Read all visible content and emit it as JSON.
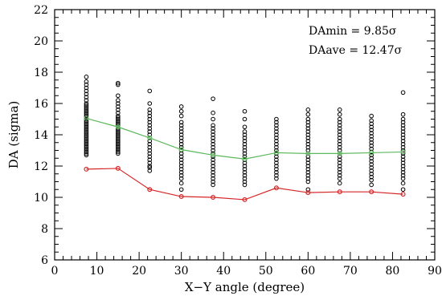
{
  "chart_data": {
    "type": "scatter",
    "title": "",
    "xlabel": "X−Y angle (degree)",
    "ylabel": "DA (sigma)",
    "xlim": [
      0,
      90
    ],
    "ylim": [
      6,
      22
    ],
    "xticks": [
      0,
      10,
      20,
      30,
      40,
      50,
      60,
      70,
      80,
      90
    ],
    "yticks": [
      6,
      8,
      10,
      12,
      14,
      16,
      18,
      20,
      22
    ],
    "grid": false,
    "annotations": [
      {
        "label": "DAmin = ",
        "value": "9.85σ"
      },
      {
        "label": "DAave = ",
        "value": "12.47σ"
      }
    ],
    "colors": {
      "ave_line": "#5cb85c",
      "min_line": "#d62728",
      "scatter": "#000000"
    },
    "scatter": [
      {
        "x": 7.5,
        "y": [
          12.7,
          12.8,
          12.9,
          13.0,
          13.1,
          13.2,
          13.3,
          13.4,
          13.5,
          13.6,
          13.7,
          13.8,
          13.9,
          14.0,
          14.1,
          14.2,
          14.3,
          14.4,
          14.5,
          14.6,
          14.7,
          14.8,
          14.9,
          15.0,
          15.1,
          15.2,
          15.3,
          15.4,
          15.5,
          15.6,
          15.7,
          15.8,
          15.9,
          16.0,
          16.2,
          16.4,
          16.6,
          16.8,
          17.0,
          17.2,
          17.4,
          17.7
        ]
      },
      {
        "x": 15,
        "y": [
          12.8,
          12.9,
          13.0,
          13.1,
          13.2,
          13.3,
          13.4,
          13.5,
          13.6,
          13.7,
          13.8,
          13.9,
          14.0,
          14.1,
          14.2,
          14.3,
          14.4,
          14.5,
          14.6,
          14.7,
          14.8,
          14.9,
          15.0,
          15.1,
          15.2,
          15.4,
          15.6,
          15.8,
          16.0,
          16.2,
          16.5,
          17.2,
          17.3
        ]
      },
      {
        "x": 22.5,
        "y": [
          11.7,
          11.9,
          12.0,
          12.2,
          12.4,
          12.6,
          12.8,
          13.0,
          13.2,
          13.4,
          13.6,
          13.8,
          14.0,
          14.2,
          14.4,
          14.6,
          14.8,
          15.0,
          15.2,
          15.4,
          15.6,
          16.0,
          16.8
        ]
      },
      {
        "x": 30,
        "y": [
          10.5,
          10.9,
          11.2,
          11.4,
          11.6,
          11.8,
          12.0,
          12.2,
          12.4,
          12.6,
          12.8,
          13.0,
          13.2,
          13.4,
          13.6,
          13.8,
          14.0,
          14.2,
          14.4,
          14.6,
          14.8,
          15.2,
          15.5,
          15.8
        ]
      },
      {
        "x": 37.5,
        "y": [
          10.8,
          11.0,
          11.2,
          11.4,
          11.6,
          11.8,
          12.0,
          12.2,
          12.4,
          12.6,
          12.8,
          13.0,
          13.2,
          13.4,
          13.6,
          13.8,
          14.0,
          14.2,
          14.4,
          14.6,
          15.0,
          15.4,
          16.3
        ]
      },
      {
        "x": 45,
        "y": [
          10.8,
          11.0,
          11.2,
          11.4,
          11.6,
          11.8,
          12.0,
          12.2,
          12.4,
          12.6,
          12.8,
          13.0,
          13.2,
          13.4,
          13.6,
          13.8,
          14.0,
          14.2,
          14.5,
          15.0,
          15.5
        ]
      },
      {
        "x": 52.5,
        "y": [
          11.2,
          11.4,
          11.6,
          11.8,
          12.0,
          12.2,
          12.4,
          12.6,
          12.8,
          13.0,
          13.2,
          13.4,
          13.6,
          13.8,
          14.0,
          14.2,
          14.4,
          14.6,
          14.8,
          15.0
        ]
      },
      {
        "x": 60,
        "y": [
          10.5,
          11.0,
          11.2,
          11.4,
          11.6,
          11.8,
          12.0,
          12.2,
          12.4,
          12.6,
          12.8,
          13.0,
          13.2,
          13.4,
          13.6,
          13.8,
          14.0,
          14.2,
          14.4,
          14.6,
          14.8,
          15.0,
          15.3,
          15.6
        ]
      },
      {
        "x": 67.5,
        "y": [
          10.9,
          11.2,
          11.4,
          11.6,
          11.8,
          12.0,
          12.2,
          12.4,
          12.6,
          12.8,
          13.0,
          13.2,
          13.4,
          13.6,
          13.8,
          14.0,
          14.2,
          14.4,
          14.6,
          14.8,
          15.0,
          15.3,
          15.6
        ]
      },
      {
        "x": 75,
        "y": [
          10.8,
          11.1,
          11.3,
          11.5,
          11.7,
          11.9,
          12.1,
          12.3,
          12.5,
          12.7,
          12.9,
          13.1,
          13.3,
          13.5,
          13.7,
          13.9,
          14.1,
          14.3,
          14.5,
          14.7,
          14.9,
          15.2
        ]
      },
      {
        "x": 82.5,
        "y": [
          10.5,
          10.9,
          11.2,
          11.4,
          11.6,
          11.8,
          12.0,
          12.2,
          12.4,
          12.6,
          12.8,
          13.0,
          13.2,
          13.4,
          13.6,
          13.8,
          14.0,
          14.2,
          14.4,
          14.6,
          14.8,
          15.0,
          15.3,
          16.7
        ]
      }
    ],
    "series": [
      {
        "x": [
          7.5,
          15,
          22.5,
          30,
          37.5,
          45,
          52.5,
          60,
          67.5,
          75,
          82.5
        ],
        "values": [
          15.05,
          14.5,
          13.8,
          13.05,
          12.7,
          12.45,
          12.85,
          12.8,
          12.8,
          12.85,
          12.9
        ],
        "color": "#5cb85c"
      },
      {
        "x": [
          7.5,
          15,
          22.5,
          30,
          37.5,
          45,
          52.5,
          60,
          67.5,
          75,
          82.5
        ],
        "values": [
          11.8,
          11.85,
          10.5,
          10.05,
          10.0,
          9.85,
          10.6,
          10.3,
          10.35,
          10.35,
          10.2
        ],
        "color": "#d62728"
      }
    ]
  }
}
